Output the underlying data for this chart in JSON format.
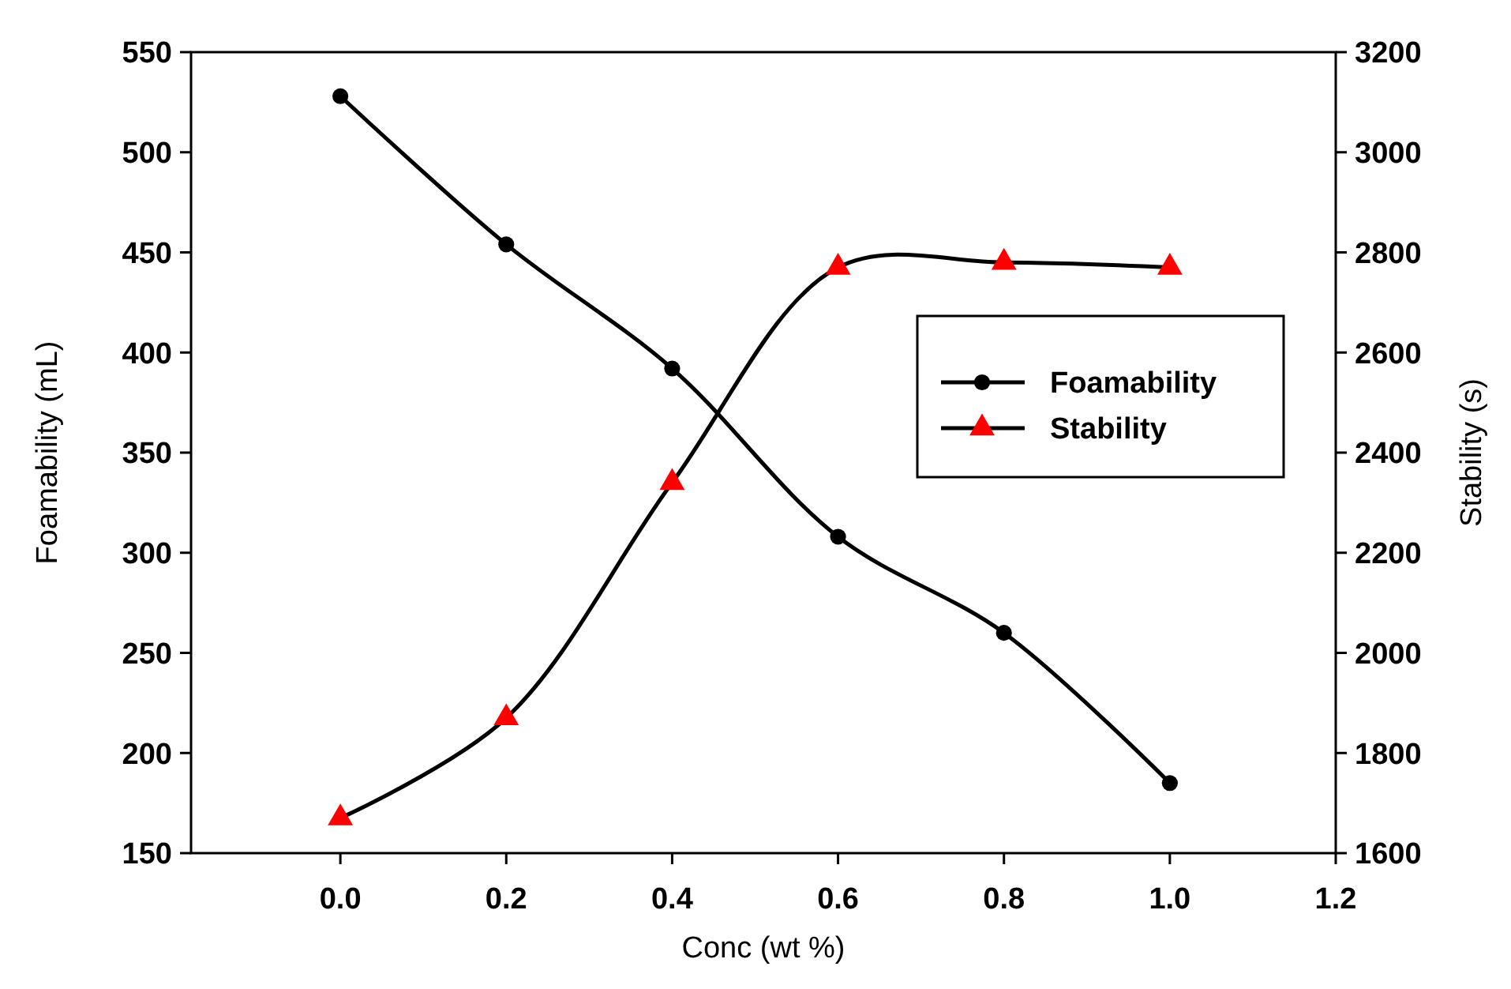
{
  "chart_data": {
    "type": "line",
    "xlabel": "Conc (wt %)",
    "ylabel": "Foamability (mL)",
    "y2label": "Stability (s)",
    "x": [
      0,
      0.2,
      0.4,
      0.6,
      0.8,
      1.0
    ],
    "xlim": [
      -0.18,
      1.2
    ],
    "xticks": [
      {
        "value": 0,
        "label": "0.0"
      },
      {
        "value": 0.2,
        "label": "0.2"
      },
      {
        "value": 0.4,
        "label": "0.4"
      },
      {
        "value": 0.6,
        "label": "0.6"
      },
      {
        "value": 0.8,
        "label": "0.8"
      },
      {
        "value": 1.0,
        "label": "1.0"
      },
      {
        "value": 1.2,
        "label": "1.2"
      }
    ],
    "ylim": [
      150,
      550
    ],
    "yticks": [
      150,
      200,
      250,
      300,
      350,
      400,
      450,
      500,
      550
    ],
    "y2lim": [
      1600,
      3200
    ],
    "y2ticks": [
      1600,
      1800,
      2000,
      2200,
      2400,
      2600,
      2800,
      3000,
      3200
    ],
    "series": [
      {
        "name": "Foamability",
        "color": "#000000",
        "marker": "circle",
        "values": [
          528,
          454,
          392,
          308,
          260,
          185
        ]
      },
      {
        "name": "Stability",
        "color": "#ff0000",
        "marker": "triangle",
        "axis": "y2",
        "values": [
          1670,
          1870,
          2340,
          2770,
          2780,
          2770
        ]
      }
    ],
    "legend": "right",
    "grid": false
  }
}
